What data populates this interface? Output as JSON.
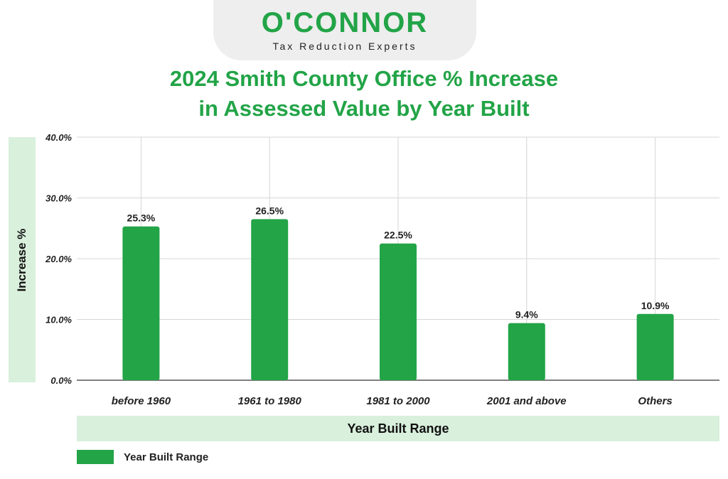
{
  "brand": {
    "name": "O'CONNOR",
    "tagline": "Tax Reduction Experts"
  },
  "colors": {
    "bar": "#22a447",
    "title": "#22a447",
    "panel": "#d9f0dc",
    "grid": "#d6d6d6"
  },
  "chart_data": {
    "type": "bar",
    "title_line1": "2024 Smith County Office % Increase",
    "title_line2": "in Assessed Value by Year Built",
    "categories": [
      "before 1960",
      "1961 to 1980",
      "1981 to 2000",
      "2001 and above",
      "Others"
    ],
    "values": [
      25.3,
      26.5,
      22.5,
      9.4,
      10.9
    ],
    "data_labels": [
      "25.3%",
      "26.5%",
      "22.5%",
      "9.4%",
      "10.9%"
    ],
    "yticks": [
      0,
      10,
      20,
      30,
      40
    ],
    "ytick_labels": [
      "0.0%",
      "10.0%",
      "20.0%",
      "30.0%",
      "40.0%"
    ],
    "ylim": [
      0,
      40
    ],
    "xlabel": "Year Built Range",
    "ylabel": "Increase %",
    "legend": [
      "Year Built Range"
    ],
    "legend_position": "bottom-left",
    "grid": true
  }
}
